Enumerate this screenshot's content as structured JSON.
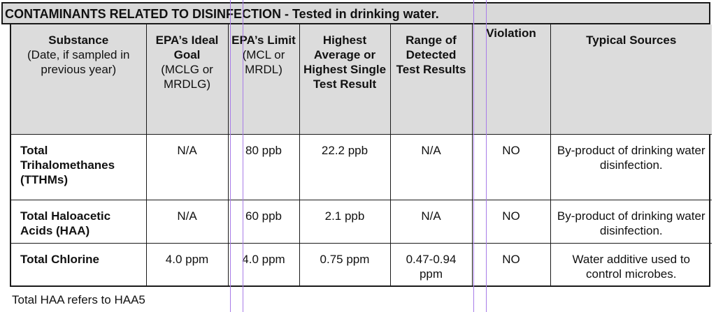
{
  "title": "CONTAMINANTS RELATED TO DISINFECTION - Tested in drinking water.",
  "headers": {
    "substance_bold": "Substance",
    "substance_note": "(Date, if sampled in previous year)",
    "ideal_bold": "EPA’s Ideal Goal",
    "ideal_note": "(MCLG or MRDLG)",
    "limit_bold": "EPA’s Limit",
    "limit_note": "(MCL or MRDL)",
    "highest": "Highest Average or Highest Single Test Result",
    "range": "Range of Detected Test Results",
    "violation": "Violation",
    "sources": "Typical Sources"
  },
  "rows": [
    {
      "substance": "Total Trihalomethanes (TTHMs)",
      "ideal": "N/A",
      "limit": "80 ppb",
      "highest": "22.2 ppb",
      "range": "N/A",
      "violation": "NO",
      "source": "By-product of drinking water disinfection."
    },
    {
      "substance": "Total Haloacetic Acids (HAA)",
      "ideal": "N/A",
      "limit": "60 ppb",
      "highest": "2.1 ppb",
      "range": "N/A",
      "violation": "NO",
      "source": "By-product of drinking water disinfection."
    },
    {
      "substance": "Total Chlorine",
      "ideal": "4.0 ppm",
      "limit": "4.0 ppm",
      "highest": "0.75 ppm",
      "range": "0.47-0.94 ppm",
      "violation": "NO",
      "source": "Water additive used to control microbes."
    }
  ],
  "footnote": "Total HAA refers to HAA5",
  "colors": {
    "header_bg": "#dcdcdc",
    "title_bg": "#d9d9d9",
    "guide_lines": "#a87ce8"
  }
}
